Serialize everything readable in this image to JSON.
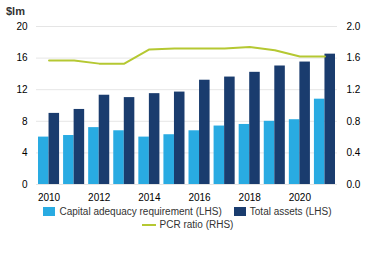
{
  "chart_data": {
    "type": "bar",
    "y_label": "$lm",
    "categories": [
      "2010",
      null,
      "2012",
      null,
      "2014",
      null,
      "2016",
      null,
      "2018",
      null,
      "2020",
      null
    ],
    "series": [
      {
        "name": "Capital adequacy requirement (LHS)",
        "type": "bar",
        "color": "#29abe2",
        "values": [
          6.0,
          6.2,
          7.2,
          6.8,
          6.0,
          6.3,
          6.8,
          7.4,
          7.6,
          8.0,
          8.2,
          10.8
        ]
      },
      {
        "name": "Total assets (LHS)",
        "type": "bar",
        "color": "#1a3c6e",
        "values": [
          9.0,
          9.5,
          11.3,
          11.0,
          11.5,
          11.7,
          13.2,
          13.6,
          14.2,
          15.0,
          15.5,
          16.5
        ]
      },
      {
        "name": "PCR ratio (RHS)",
        "type": "line",
        "axis": "y2",
        "color": "#b5c832",
        "values": [
          1.57,
          1.57,
          1.53,
          1.53,
          1.71,
          1.72,
          1.72,
          1.72,
          1.74,
          1.7,
          1.62,
          1.62
        ]
      }
    ],
    "ylim": [
      0,
      20
    ],
    "yticks": [
      0,
      4,
      8,
      12,
      16,
      20
    ],
    "y2lim": [
      0,
      2
    ],
    "y2ticks": [
      {
        "value": 0,
        "label": "0.0"
      },
      0.4,
      0.8,
      1.2,
      1.6,
      {
        "value": 2,
        "label": "2.0"
      }
    ],
    "grid": true,
    "legend": "bottom"
  }
}
